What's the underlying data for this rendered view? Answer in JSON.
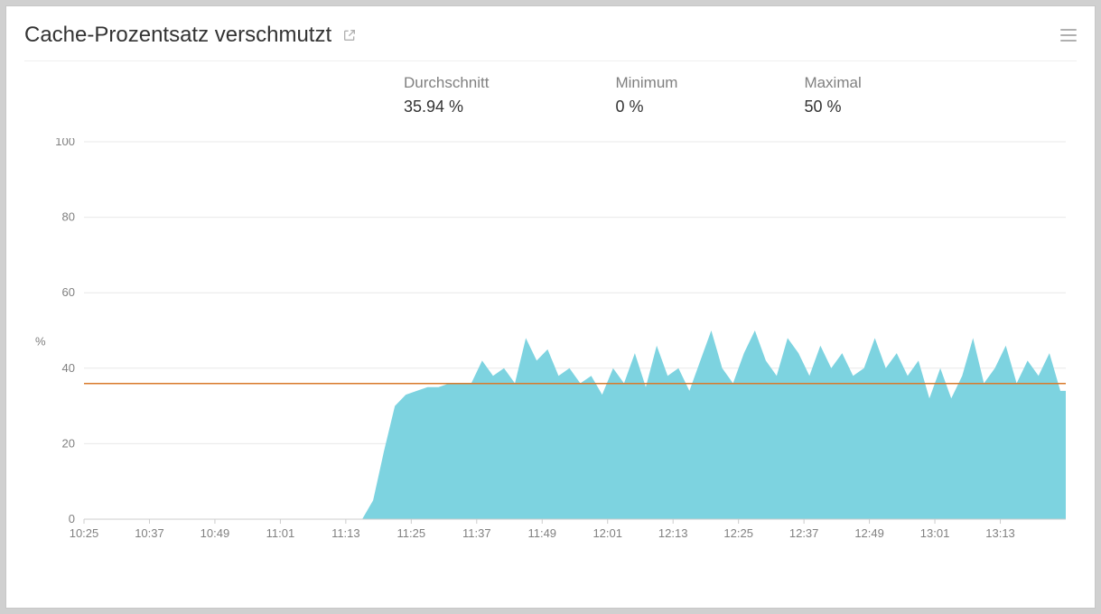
{
  "title": "Cache-Prozentsatz verschmutzt",
  "stats": {
    "avg_label": "Durchschnitt",
    "avg_value": "35.94 %",
    "min_label": "Minimum",
    "min_value": "0 %",
    "max_label": "Maximal",
    "max_value": "50 %"
  },
  "chart": {
    "type": "area",
    "y_axis_title": "%",
    "ylim": [
      0,
      100
    ],
    "ytick_step": 20,
    "yticks": [
      0,
      20,
      40,
      60,
      80,
      100
    ],
    "x_domain_minutes": [
      625,
      805
    ],
    "xticks_minutes": [
      625,
      637,
      649,
      661,
      673,
      685,
      697,
      709,
      721,
      733,
      745,
      757,
      769,
      781,
      793
    ],
    "xtick_labels": [
      "10:25",
      "10:37",
      "10:49",
      "11:01",
      "11:13",
      "11:25",
      "11:37",
      "11:49",
      "12:01",
      "12:13",
      "12:25",
      "12:37",
      "12:49",
      "13:01",
      "13:13"
    ],
    "mean_value": 35.94,
    "mean_line_color": "#d97a2a",
    "area_color": "#7dd3e0",
    "background_color": "#ffffff",
    "grid_color": "#e8e8e8",
    "axis_color": "#cccccc",
    "tick_font_size": 13,
    "tick_color": "#808080",
    "data": [
      [
        625,
        0
      ],
      [
        650,
        0
      ],
      [
        670,
        0
      ],
      [
        676,
        0
      ],
      [
        678,
        5
      ],
      [
        680,
        18
      ],
      [
        682,
        30
      ],
      [
        684,
        33
      ],
      [
        686,
        34
      ],
      [
        688,
        35
      ],
      [
        690,
        35
      ],
      [
        692,
        36
      ],
      [
        694,
        36
      ],
      [
        696,
        36
      ],
      [
        698,
        42
      ],
      [
        700,
        38
      ],
      [
        702,
        40
      ],
      [
        704,
        36
      ],
      [
        706,
        48
      ],
      [
        708,
        42
      ],
      [
        710,
        45
      ],
      [
        712,
        38
      ],
      [
        714,
        40
      ],
      [
        716,
        36
      ],
      [
        718,
        38
      ],
      [
        720,
        33
      ],
      [
        722,
        40
      ],
      [
        724,
        36
      ],
      [
        726,
        44
      ],
      [
        728,
        35
      ],
      [
        730,
        46
      ],
      [
        732,
        38
      ],
      [
        734,
        40
      ],
      [
        736,
        34
      ],
      [
        738,
        42
      ],
      [
        740,
        50
      ],
      [
        742,
        40
      ],
      [
        744,
        36
      ],
      [
        746,
        44
      ],
      [
        748,
        50
      ],
      [
        750,
        42
      ],
      [
        752,
        38
      ],
      [
        754,
        48
      ],
      [
        756,
        44
      ],
      [
        758,
        38
      ],
      [
        760,
        46
      ],
      [
        762,
        40
      ],
      [
        764,
        44
      ],
      [
        766,
        38
      ],
      [
        768,
        40
      ],
      [
        770,
        48
      ],
      [
        772,
        40
      ],
      [
        774,
        44
      ],
      [
        776,
        38
      ],
      [
        778,
        42
      ],
      [
        780,
        32
      ],
      [
        782,
        40
      ],
      [
        784,
        32
      ],
      [
        786,
        38
      ],
      [
        788,
        48
      ],
      [
        790,
        36
      ],
      [
        792,
        40
      ],
      [
        794,
        46
      ],
      [
        796,
        36
      ],
      [
        798,
        42
      ],
      [
        800,
        38
      ],
      [
        802,
        44
      ],
      [
        804,
        34
      ],
      [
        805,
        34
      ]
    ]
  }
}
